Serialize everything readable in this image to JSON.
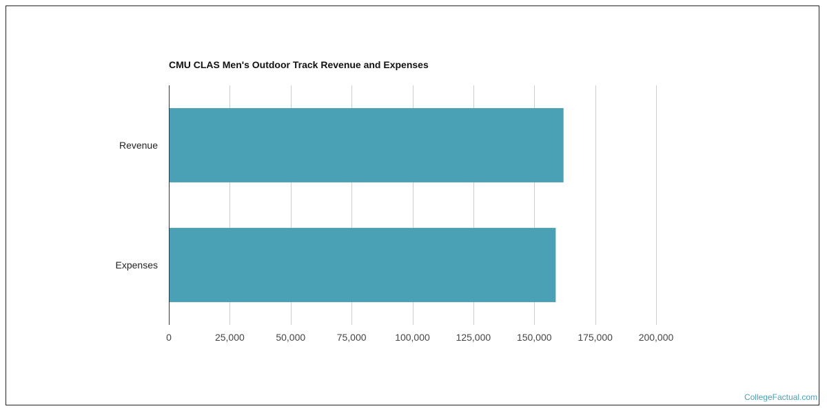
{
  "chart_data": {
    "type": "bar",
    "orientation": "horizontal",
    "title": "CMU CLAS Men's Outdoor Track Revenue and Expenses",
    "categories": [
      "Revenue",
      "Expenses"
    ],
    "values": [
      162000,
      158800
    ],
    "xlim": [
      0,
      200000
    ],
    "ticks": [
      "0",
      "25,000",
      "50,000",
      "75,000",
      "100,000",
      "125,000",
      "150,000",
      "175,000",
      "200,000"
    ],
    "tick_values": [
      0,
      25000,
      50000,
      75000,
      100000,
      125000,
      150000,
      175000,
      200000
    ],
    "grid": true,
    "bar_color": "#4aa0b4",
    "grid_color": "#cccccc"
  },
  "footer": {
    "source": "CollegeFactual.com"
  }
}
